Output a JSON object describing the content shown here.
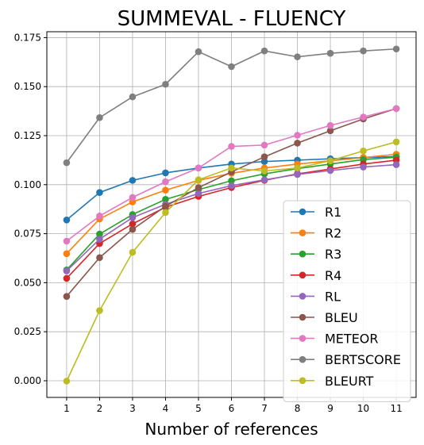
{
  "chart_data": {
    "type": "line",
    "title": "SUMMEVAL - FLUENCY",
    "xlabel": "Number of references",
    "ylabel": "",
    "x": [
      1,
      2,
      3,
      4,
      5,
      6,
      7,
      8,
      9,
      10,
      11
    ],
    "xticks": [
      "1",
      "2",
      "3",
      "4",
      "5",
      "6",
      "7",
      "8",
      "9",
      "10",
      "11"
    ],
    "ylim": [
      -0.0085,
      0.178
    ],
    "yticks": [
      "0.000",
      "0.025",
      "0.050",
      "0.075",
      "0.100",
      "0.125",
      "0.150",
      "0.175"
    ],
    "grid": true,
    "legend_position": "lower-right",
    "series": [
      {
        "name": "R1",
        "color": "#1f77b4",
        "values": [
          0.082,
          0.096,
          0.1022,
          0.106,
          0.1085,
          0.1105,
          0.1118,
          0.1125,
          0.1132,
          0.1138,
          0.1143
        ]
      },
      {
        "name": "R2",
        "color": "#ff7f0e",
        "values": [
          0.0648,
          0.0825,
          0.0912,
          0.0972,
          0.1022,
          0.1058,
          0.1085,
          0.1105,
          0.1122,
          0.1138,
          0.1155
        ]
      },
      {
        "name": "R3",
        "color": "#2ca02c",
        "values": [
          0.0565,
          0.0748,
          0.0848,
          0.0925,
          0.0975,
          0.102,
          0.1055,
          0.1082,
          0.1105,
          0.1128,
          0.114
        ]
      },
      {
        "name": "R4",
        "color": "#d62728",
        "values": [
          0.0522,
          0.07,
          0.08,
          0.0885,
          0.094,
          0.0985,
          0.1022,
          0.1055,
          0.108,
          0.1105,
          0.1125
        ]
      },
      {
        "name": "RL",
        "color": "#9467bd",
        "values": [
          0.056,
          0.0722,
          0.0832,
          0.09,
          0.0955,
          0.0995,
          0.1025,
          0.1052,
          0.1072,
          0.109,
          0.1102
        ]
      },
      {
        "name": "BLEU",
        "color": "#8c564b",
        "values": [
          0.043,
          0.0628,
          0.0772,
          0.089,
          0.0985,
          0.1065,
          0.1142,
          0.1212,
          0.1275,
          0.1335,
          0.1388
        ]
      },
      {
        "name": "METEOR",
        "color": "#e377c2",
        "values": [
          0.0712,
          0.084,
          0.0935,
          0.1015,
          0.1085,
          0.1195,
          0.1202,
          0.1252,
          0.1302,
          0.1345,
          0.1388
        ]
      },
      {
        "name": "BERTSCORE",
        "color": "#7f7f7f",
        "values": [
          0.1112,
          0.1342,
          0.1448,
          0.1512,
          0.1678,
          0.1602,
          0.1682,
          0.1652,
          0.167,
          0.1682,
          0.1692
        ]
      },
      {
        "name": "BLEURT",
        "color": "#bcbd22",
        "values": [
          -0.0002,
          0.0358,
          0.0655,
          0.0858,
          0.1025,
          0.1085,
          0.107,
          0.1085,
          0.1122,
          0.1172,
          0.1218
        ]
      }
    ]
  }
}
